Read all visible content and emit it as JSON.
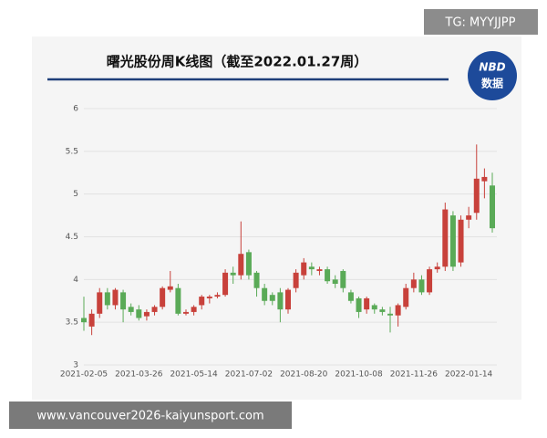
{
  "chart_data": {
    "type": "candlestick",
    "title": "曙光股份周K线图（截至2022.01.27周）",
    "categories": [
      "2021-02-05",
      null,
      null,
      null,
      null,
      null,
      null,
      "2021-03-26",
      null,
      null,
      null,
      null,
      null,
      null,
      "2021-05-14",
      null,
      null,
      null,
      null,
      null,
      null,
      "2021-07-02",
      null,
      null,
      null,
      null,
      null,
      null,
      "2021-08-20",
      null,
      null,
      null,
      null,
      null,
      null,
      "2021-10-08",
      null,
      null,
      null,
      null,
      null,
      null,
      "2021-11-26",
      null,
      null,
      null,
      null,
      null,
      null,
      "2022-01-14",
      null,
      null,
      null
    ],
    "open": [
      3.55,
      3.45,
      3.6,
      3.85,
      3.7,
      3.85,
      3.68,
      3.65,
      3.57,
      3.62,
      3.68,
      3.88,
      3.9,
      3.6,
      3.62,
      3.7,
      3.78,
      3.8,
      3.82,
      4.08,
      4.05,
      4.32,
      4.08,
      3.9,
      3.82,
      3.85,
      3.65,
      3.9,
      4.05,
      4.15,
      4.1,
      4.12,
      4.0,
      4.1,
      3.85,
      3.78,
      3.65,
      3.7,
      3.65,
      3.6,
      3.58,
      3.68,
      3.9,
      4.0,
      3.85,
      4.12,
      4.15,
      4.75,
      4.2,
      4.7,
      4.78,
      5.15,
      5.1
    ],
    "high": [
      3.8,
      3.65,
      3.9,
      3.9,
      3.9,
      3.88,
      3.72,
      3.7,
      3.65,
      3.7,
      3.92,
      4.1,
      3.95,
      3.65,
      3.7,
      3.82,
      3.82,
      3.85,
      4.12,
      4.15,
      4.68,
      4.35,
      4.1,
      3.95,
      3.85,
      3.9,
      3.9,
      4.12,
      4.25,
      4.2,
      4.15,
      4.15,
      4.05,
      4.12,
      3.88,
      3.8,
      3.8,
      3.72,
      3.68,
      3.68,
      3.72,
      3.95,
      4.08,
      4.05,
      4.15,
      4.2,
      4.9,
      4.8,
      4.75,
      4.85,
      5.58,
      5.3,
      5.25
    ],
    "low": [
      3.4,
      3.35,
      3.55,
      3.65,
      3.65,
      3.5,
      3.58,
      3.52,
      3.52,
      3.58,
      3.65,
      3.85,
      3.58,
      3.58,
      3.58,
      3.65,
      3.72,
      3.78,
      3.8,
      3.95,
      4.0,
      4.0,
      3.8,
      3.7,
      3.7,
      3.5,
      3.6,
      3.85,
      4.0,
      4.05,
      4.05,
      3.95,
      3.9,
      3.85,
      3.72,
      3.55,
      3.6,
      3.6,
      3.58,
      3.38,
      3.45,
      3.65,
      3.85,
      3.82,
      3.82,
      4.08,
      4.1,
      4.1,
      4.15,
      4.6,
      4.7,
      4.95,
      4.55
    ],
    "close": [
      3.5,
      3.6,
      3.85,
      3.7,
      3.88,
      3.65,
      3.62,
      3.55,
      3.62,
      3.68,
      3.9,
      3.92,
      3.6,
      3.62,
      3.68,
      3.8,
      3.8,
      3.82,
      4.08,
      4.05,
      4.3,
      4.05,
      3.9,
      3.75,
      3.75,
      3.65,
      3.88,
      4.08,
      4.2,
      4.12,
      4.12,
      3.98,
      3.95,
      3.9,
      3.75,
      3.62,
      3.78,
      3.65,
      3.62,
      3.58,
      3.7,
      3.9,
      4.0,
      3.85,
      4.12,
      4.15,
      4.82,
      4.15,
      4.7,
      4.75,
      5.18,
      5.2,
      4.6
    ],
    "up_color": "#c8413b",
    "down_color": "#5aaa57",
    "ylim": [
      3,
      6
    ],
    "yticks": [
      3,
      3.5,
      4,
      4.5,
      5,
      5.5,
      6
    ],
    "grid": true
  },
  "badge": {
    "line1": "NBD",
    "line2": "数据"
  },
  "overlays": {
    "top_right": "TG: MYYJJPP",
    "bottom": "www.vancouver2026-kaiyunsport.com"
  }
}
